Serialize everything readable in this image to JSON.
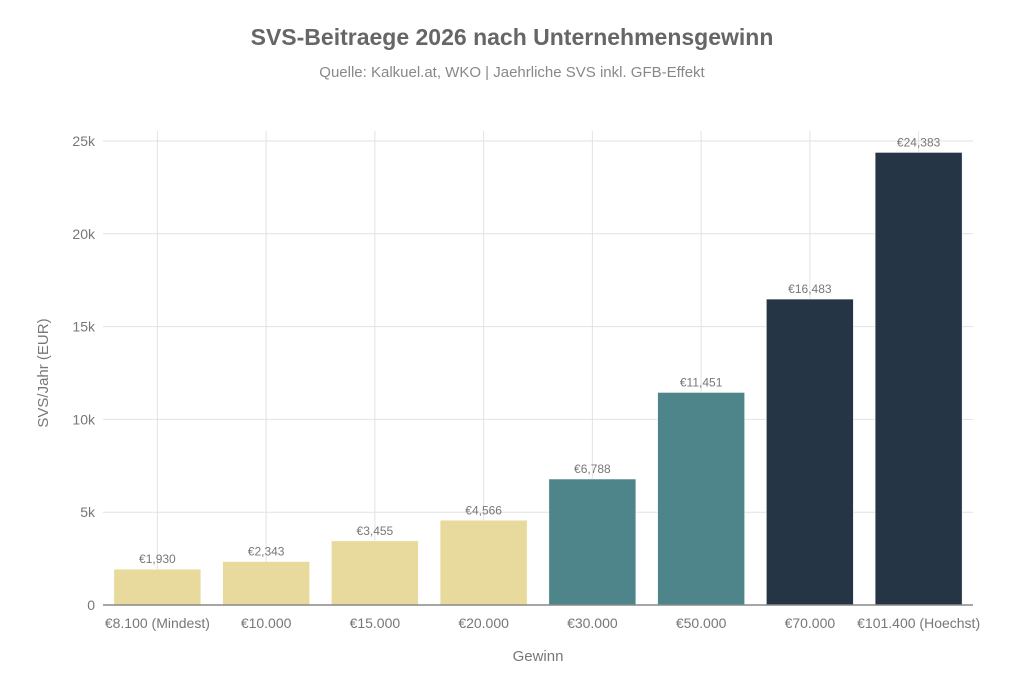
{
  "chart_data": {
    "type": "bar",
    "title": "SVS-Beitraege 2026 nach Unternehmensgewinn",
    "subtitle": "Quelle: Kalkuel.at, WKO | Jaehrliche SVS inkl. GFB-Effekt",
    "xlabel": "Gewinn",
    "ylabel": "SVS/Jahr (EUR)",
    "ylim": [
      0,
      25000
    ],
    "yticks": [
      0,
      5000,
      10000,
      15000,
      20000,
      25000
    ],
    "ytick_labels": [
      "0",
      "5k",
      "10k",
      "15k",
      "20k",
      "25k"
    ],
    "grid": true,
    "categories": [
      "€8.100 (Mindest)",
      "€10.000",
      "€15.000",
      "€20.000",
      "€30.000",
      "€50.000",
      "€70.000",
      "€101.400 (Hoechst)"
    ],
    "values": [
      1930,
      2343,
      3455,
      4566,
      6788,
      11451,
      16483,
      24383
    ],
    "data_labels": [
      "€1,930",
      "€2,343",
      "€3,455",
      "€4,566",
      "€6,788",
      "€11,451",
      "€16,483",
      "€24,383"
    ],
    "colors": [
      "#e8da9c",
      "#e8da9c",
      "#e8da9c",
      "#e8da9c",
      "#4e858a",
      "#4e858a",
      "#253545",
      "#253545"
    ]
  }
}
